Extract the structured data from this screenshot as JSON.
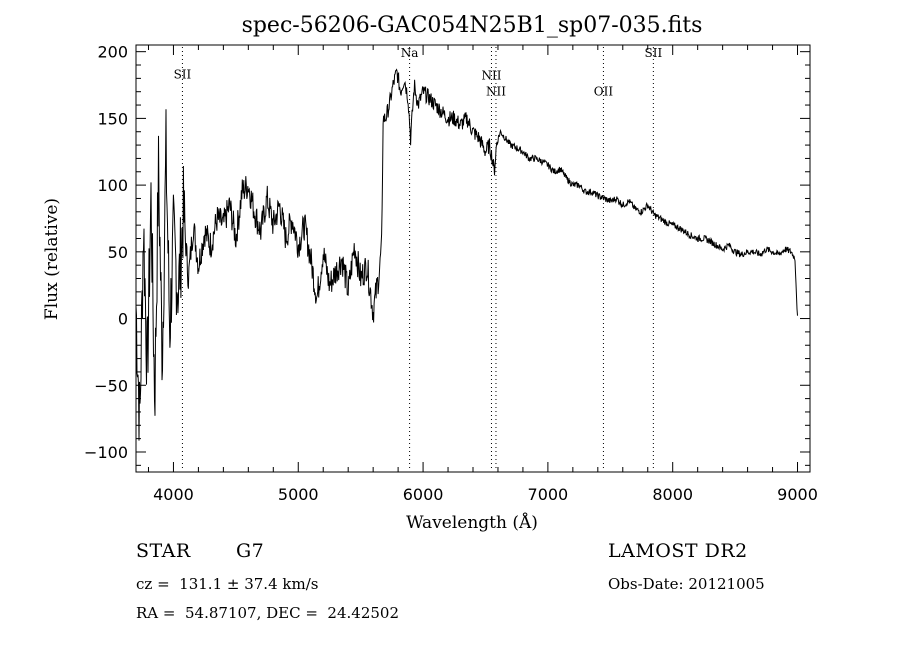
{
  "chart_data": {
    "type": "line",
    "title": "spec-56206-GAC054N25B1_sp07-035.fits",
    "xlabel": "Wavelength (Å)",
    "ylabel": "Flux (relative)",
    "xlim": [
      3700,
      9100
    ],
    "ylim": [
      -115,
      205
    ],
    "xticks": [
      4000,
      5000,
      6000,
      7000,
      8000,
      9000
    ],
    "yticks": [
      -100,
      -50,
      0,
      50,
      100,
      150,
      200
    ],
    "grid": false,
    "line_color": "#000000",
    "spectral_lines": [
      {
        "label": "SII",
        "wavelength": 4072,
        "label_y": 180
      },
      {
        "label": "Na",
        "wavelength": 5892,
        "label_y": 196
      },
      {
        "label": "NII",
        "wavelength": 6548,
        "label_y": 179
      },
      {
        "label": "NII",
        "wavelength": 6584,
        "label_y": 167
      },
      {
        "label": "OII",
        "wavelength": 7445,
        "label_y": 167
      },
      {
        "label": "SII",
        "wavelength": 7845,
        "label_y": 196
      }
    ],
    "series": [
      {
        "x": [
          3700,
          3730,
          3760,
          3790,
          3820,
          3850,
          3880,
          3910,
          3940,
          3970,
          4000,
          4040,
          4080,
          4120,
          4160,
          4200,
          4250,
          4300,
          4350,
          4400,
          4450,
          4500,
          4550,
          4600,
          4650,
          4700,
          4750,
          4800,
          4850,
          4900,
          4950,
          5000,
          5050,
          5100,
          5150,
          5200,
          5250,
          5300,
          5350,
          5400,
          5450,
          5500,
          5550,
          5600,
          5650,
          5670,
          5680,
          5700,
          5730,
          5760,
          5790,
          5820,
          5850,
          5880,
          5900,
          5930,
          5960,
          6000,
          6050,
          6100,
          6150,
          6200,
          6250,
          6300,
          6350,
          6400,
          6450,
          6500,
          6530,
          6555,
          6570,
          6590,
          6620,
          6660,
          6700,
          6750,
          6800,
          6850,
          6900,
          6950,
          7000,
          7050,
          7100,
          7150,
          7200,
          7250,
          7300,
          7350,
          7400,
          7450,
          7500,
          7550,
          7600,
          7650,
          7700,
          7750,
          7800,
          7850,
          7900,
          7950,
          8000,
          8050,
          8100,
          8150,
          8200,
          8250,
          8300,
          8350,
          8400,
          8450,
          8500,
          8550,
          8600,
          8650,
          8700,
          8750,
          8800,
          8850,
          8900,
          8950,
          8980,
          9000
        ],
        "y": [
          10,
          -80,
          70,
          -40,
          90,
          -60,
          110,
          -30,
          125,
          -10,
          60,
          20,
          80,
          30,
          70,
          40,
          65,
          55,
          75,
          70,
          85,
          60,
          95,
          100,
          80,
          65,
          90,
          70,
          85,
          60,
          75,
          55,
          70,
          45,
          15,
          50,
          25,
          35,
          45,
          20,
          55,
          30,
          40,
          5,
          35,
          60,
          150,
          150,
          160,
          175,
          185,
          170,
          180,
          165,
          135,
          175,
          160,
          170,
          165,
          160,
          155,
          150,
          150,
          145,
          150,
          140,
          135,
          125,
          130,
          120,
          110,
          132,
          140,
          135,
          130,
          128,
          125,
          120,
          120,
          118,
          115,
          110,
          112,
          105,
          100,
          100,
          95,
          95,
          92,
          90,
          88,
          90,
          85,
          88,
          82,
          80,
          85,
          78,
          75,
          72,
          70,
          68,
          65,
          62,
          60,
          60,
          58,
          55,
          52,
          55,
          50,
          48,
          50,
          50,
          48,
          52,
          50,
          48,
          52,
          50,
          45,
          0
        ]
      }
    ]
  },
  "info": {
    "object_class": "STAR",
    "subclass": "G7",
    "survey": "LAMOST DR2",
    "redshift": "cz =  131.1 ± 37.4 km/s",
    "obs_date": "Obs-Date: 20121005",
    "coords": "RA =  54.87107, DEC =  24.42502"
  }
}
